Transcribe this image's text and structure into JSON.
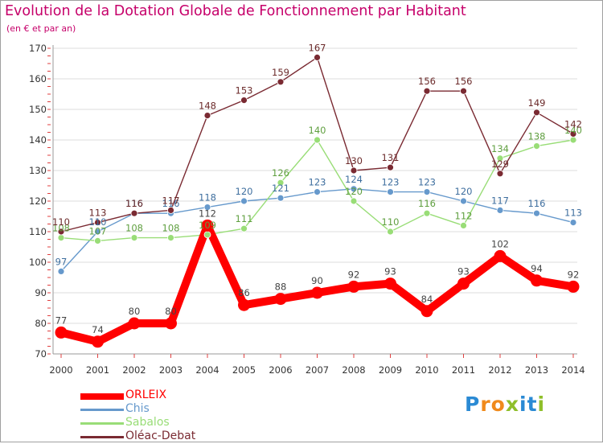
{
  "header": {
    "title": "Evolution de la Dotation Globale de Fonctionnement par Habitant",
    "subtitle": "(en € et par an)"
  },
  "colors": {
    "title": "#c6006a",
    "axis_text": "#333333",
    "grid": "#dddddd",
    "axis": "#999999"
  },
  "chart_data": {
    "type": "line",
    "title": "Evolution de la Dotation Globale de Fonctionnement par Habitant",
    "subtitle": "(en € et par an)",
    "xlabel": "",
    "ylabel": "",
    "x": [
      "2000",
      "2001",
      "2002",
      "2003",
      "2004",
      "2005",
      "2006",
      "2007",
      "2008",
      "2009",
      "2010",
      "2011",
      "2012",
      "2013",
      "2014"
    ],
    "ylim": [
      70,
      170
    ],
    "yticks": [
      70,
      80,
      90,
      100,
      110,
      120,
      130,
      140,
      150,
      160,
      170
    ],
    "grid": "horizontal",
    "legend_position": "bottom-left",
    "series": [
      {
        "name": "ORLEIX",
        "color": "#ff0000",
        "label_color": "#444444",
        "emphasis": true,
        "values": [
          77,
          74,
          80,
          80,
          112,
          86,
          88,
          90,
          92,
          93,
          84,
          93,
          102,
          94,
          92
        ]
      },
      {
        "name": "Chis",
        "color": "#6699cc",
        "label_color": "#3f6f9f",
        "emphasis": false,
        "values": [
          97,
          110,
          116,
          116,
          118,
          120,
          121,
          123,
          124,
          123,
          123,
          120,
          117,
          116,
          113
        ]
      },
      {
        "name": "Sabalos",
        "color": "#99dd77",
        "label_color": "#5f9f3f",
        "emphasis": false,
        "values": [
          108,
          107,
          108,
          108,
          109,
          111,
          126,
          140,
          120,
          110,
          116,
          112,
          134,
          138,
          140
        ]
      },
      {
        "name": "Oléac-Debat",
        "color": "#7a2a32",
        "label_color": "#6b2a2a",
        "emphasis": false,
        "values": [
          110,
          113,
          116,
          117,
          148,
          153,
          159,
          167,
          130,
          131,
          156,
          156,
          129,
          149,
          142
        ]
      }
    ]
  },
  "legend": {
    "items": [
      {
        "label": "ORLEIX",
        "color": "#ff0000"
      },
      {
        "label": "Chis",
        "color": "#6699cc"
      },
      {
        "label": "Sabalos",
        "color": "#99dd77"
      },
      {
        "label": "Oléac-Debat",
        "color": "#7a2a32"
      }
    ]
  },
  "logo": {
    "letters": [
      "P",
      "r",
      "o",
      "x",
      "i",
      "t",
      "i"
    ],
    "colors": [
      "#2a8ad4",
      "#f08a1c",
      "#f08a1c",
      "#8fbf2a",
      "#2a8ad4",
      "#2a8ad4",
      "#8fbf2a"
    ]
  }
}
